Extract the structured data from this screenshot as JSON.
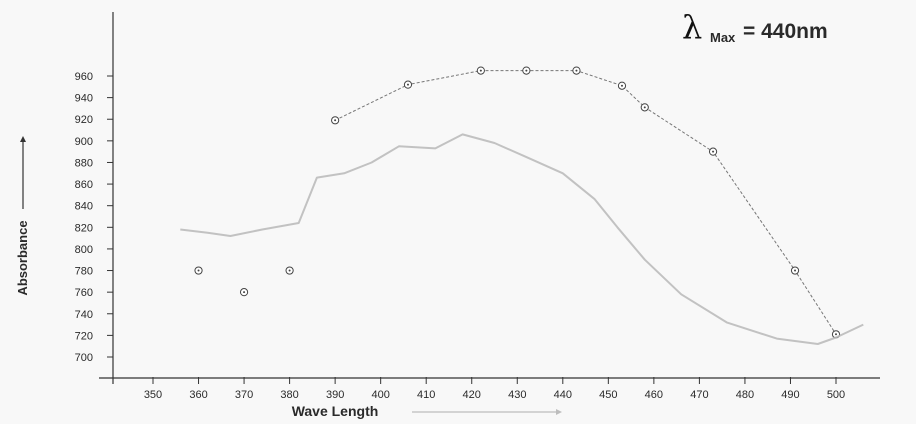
{
  "chart_data": {
    "type": "line",
    "title": "Max = 440nm",
    "title_symbol": "λ",
    "title_subscript": "Max",
    "title_value": "= 440nm",
    "xlabel": "Wave Length",
    "ylabel": "Absorbance",
    "xlim": [
      340,
      510
    ],
    "ylim": [
      690,
      975
    ],
    "x_ticks": [
      350,
      360,
      370,
      380,
      390,
      400,
      410,
      420,
      430,
      440,
      450,
      460,
      470,
      480,
      490,
      500
    ],
    "y_ticks": [
      700,
      720,
      740,
      760,
      780,
      800,
      820,
      840,
      860,
      880,
      900,
      920,
      940,
      960
    ],
    "grid": false,
    "series": [
      {
        "style": "markers-and-dashed-line",
        "color": "#555555",
        "points": [
          {
            "x": 360,
            "y": 780
          },
          {
            "x": 370,
            "y": 760
          },
          {
            "x": 380,
            "y": 780
          },
          {
            "x": 390,
            "y": 919
          },
          {
            "x": 406,
            "y": 952
          },
          {
            "x": 422,
            "y": 965
          },
          {
            "x": 432,
            "y": 965
          },
          {
            "x": 443,
            "y": 965
          },
          {
            "x": 453,
            "y": 951
          },
          {
            "x": 458,
            "y": 931
          },
          {
            "x": 473,
            "y": 890
          },
          {
            "x": 491,
            "y": 780
          },
          {
            "x": 500,
            "y": 721
          }
        ]
      },
      {
        "style": "faint-line",
        "color": "#b8b8b8",
        "points": [
          {
            "x": 356,
            "y": 818
          },
          {
            "x": 362,
            "y": 815
          },
          {
            "x": 367,
            "y": 812
          },
          {
            "x": 374,
            "y": 818
          },
          {
            "x": 382,
            "y": 824
          },
          {
            "x": 386,
            "y": 866
          },
          {
            "x": 392,
            "y": 870
          },
          {
            "x": 398,
            "y": 880
          },
          {
            "x": 404,
            "y": 895
          },
          {
            "x": 412,
            "y": 893
          },
          {
            "x": 418,
            "y": 906
          },
          {
            "x": 425,
            "y": 898
          },
          {
            "x": 432,
            "y": 885
          },
          {
            "x": 440,
            "y": 870
          },
          {
            "x": 447,
            "y": 846
          },
          {
            "x": 452,
            "y": 820
          },
          {
            "x": 458,
            "y": 790
          },
          {
            "x": 466,
            "y": 758
          },
          {
            "x": 476,
            "y": 732
          },
          {
            "x": 487,
            "y": 717
          },
          {
            "x": 496,
            "y": 712
          },
          {
            "x": 500,
            "y": 718
          },
          {
            "x": 506,
            "y": 730
          }
        ]
      }
    ]
  }
}
